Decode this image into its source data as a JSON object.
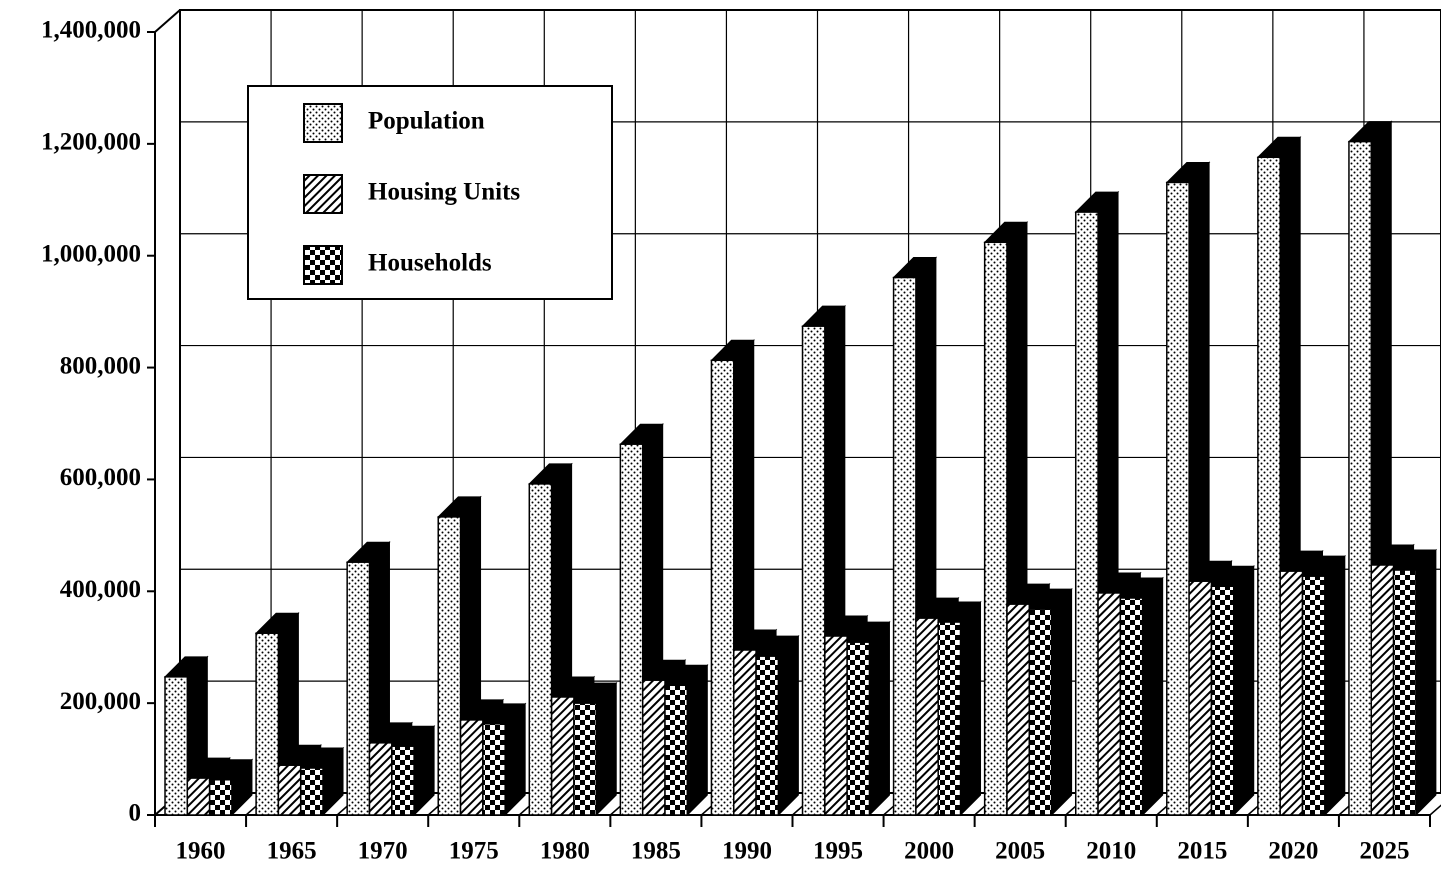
{
  "chart_data": {
    "type": "bar3d",
    "categories": [
      "1960",
      "1965",
      "1970",
      "1975",
      "1980",
      "1985",
      "1990",
      "1995",
      "2000",
      "2005",
      "2010",
      "2015",
      "2020",
      "2025"
    ],
    "series": [
      {
        "name": "Population",
        "color": "#000000",
        "pattern": "dots",
        "values": [
          247000,
          325000,
          452000,
          533000,
          592000,
          663000,
          813000,
          874000,
          961000,
          1024000,
          1078000,
          1131000,
          1176000,
          1204000
        ]
      },
      {
        "name": "Housing Units",
        "color": "#000000",
        "pattern": "hatch",
        "values": [
          66000,
          89000,
          129000,
          170000,
          211000,
          241000,
          295000,
          320000,
          352000,
          377000,
          397000,
          418000,
          436000,
          447000
        ]
      },
      {
        "name": "Households",
        "color": "#000000",
        "pattern": "checker",
        "values": [
          63000,
          84000,
          123000,
          163000,
          200000,
          232000,
          284000,
          309000,
          345000,
          368000,
          388000,
          409000,
          427000,
          438000
        ]
      }
    ],
    "ylim": [
      0,
      1400000
    ],
    "yticks": [
      {
        "value": 0,
        "label": "0"
      },
      {
        "value": 200000,
        "label": "200,000"
      },
      {
        "value": 400000,
        "label": "400,000"
      },
      {
        "value": 600000,
        "label": "600,000"
      },
      {
        "value": 800000,
        "label": "800,000"
      },
      {
        "value": 1000000,
        "label": "1,000,000"
      },
      {
        "value": 1200000,
        "label": "1,200,000"
      },
      {
        "value": 1400000,
        "label": "1,400,000"
      }
    ],
    "grid": true,
    "legend": "upper left"
  }
}
